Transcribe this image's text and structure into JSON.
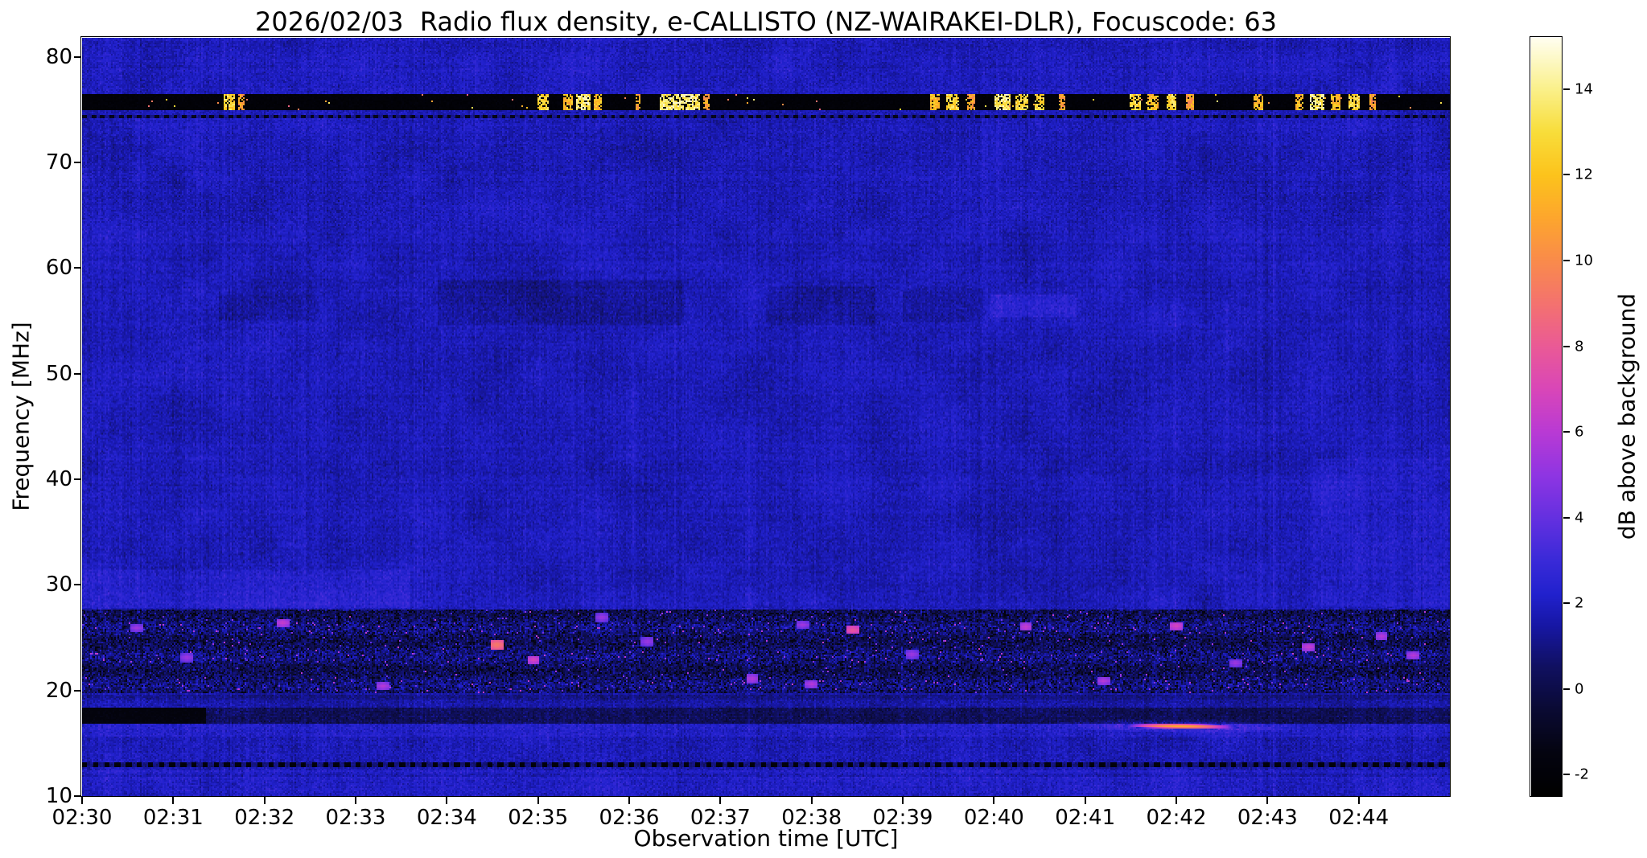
{
  "seed": 20260203,
  "chart_data": {
    "type": "heatmap",
    "title": "2026/02/03  Radio flux density, e-CALLISTO (NZ-WAIRAKEI-DLR), Focuscode: 63",
    "xlabel": "Observation time [UTC]",
    "ylabel": "Frequency [MHz]",
    "x_ticks": [
      "02:30",
      "02:31",
      "02:32",
      "02:33",
      "02:34",
      "02:35",
      "02:36",
      "02:37",
      "02:38",
      "02:39",
      "02:40",
      "02:41",
      "02:42",
      "02:43",
      "02:44"
    ],
    "x_span_minutes": 15,
    "y_ticks": [
      10,
      20,
      30,
      40,
      50,
      60,
      70,
      80
    ],
    "y_range_mhz": [
      10,
      81.8
    ],
    "background_db": 1.8,
    "noise_db": 0.55,
    "colorbar": {
      "label": "dB above background",
      "ticks": [
        -2,
        0,
        2,
        4,
        6,
        8,
        10,
        12,
        14
      ],
      "range": [
        -2.5,
        15.2
      ],
      "stops": [
        [
          -2.5,
          "#000000"
        ],
        [
          -1.5,
          "#040410"
        ],
        [
          -0.5,
          "#0a0a33"
        ],
        [
          0.5,
          "#101060"
        ],
        [
          1.5,
          "#1717a6"
        ],
        [
          2.2,
          "#2121cd"
        ],
        [
          3,
          "#3a2ad8"
        ],
        [
          4,
          "#6530e0"
        ],
        [
          5,
          "#8f35e2"
        ],
        [
          6,
          "#b93ad4"
        ],
        [
          7,
          "#d946b8"
        ],
        [
          8,
          "#ea5a96"
        ],
        [
          9,
          "#f4726f"
        ],
        [
          10,
          "#f98b4b"
        ],
        [
          11,
          "#fda62d"
        ],
        [
          12,
          "#fcc31c"
        ],
        [
          13,
          "#f8dd3a"
        ],
        [
          14,
          "#faf08a"
        ],
        [
          15.2,
          "#fffef0"
        ]
      ]
    },
    "features": {
      "rfi_band_75mhz": {
        "f_lo": 74.9,
        "f_hi": 76.5,
        "db": -2.2,
        "bursts": [
          [
            1.62,
            0.06,
            14
          ],
          [
            1.75,
            0.03,
            12
          ],
          [
            5.05,
            0.06,
            14
          ],
          [
            5.33,
            0.05,
            13
          ],
          [
            5.5,
            0.08,
            15
          ],
          [
            5.66,
            0.04,
            13
          ],
          [
            6.1,
            0.03,
            12
          ],
          [
            6.55,
            0.22,
            15
          ],
          [
            6.85,
            0.04,
            12
          ],
          [
            9.35,
            0.05,
            13
          ],
          [
            9.55,
            0.07,
            14
          ],
          [
            9.75,
            0.04,
            12
          ],
          [
            10.1,
            0.09,
            15
          ],
          [
            10.3,
            0.07,
            14
          ],
          [
            10.5,
            0.06,
            14
          ],
          [
            10.75,
            0.03,
            12
          ],
          [
            11.55,
            0.07,
            14
          ],
          [
            11.75,
            0.06,
            13
          ],
          [
            11.95,
            0.05,
            14
          ],
          [
            12.15,
            0.04,
            12
          ],
          [
            12.9,
            0.06,
            13
          ],
          [
            13.35,
            0.05,
            13
          ],
          [
            13.55,
            0.08,
            15
          ],
          [
            13.75,
            0.05,
            13
          ],
          [
            13.95,
            0.07,
            14
          ],
          [
            14.15,
            0.04,
            12
          ]
        ]
      },
      "dotted_line_74mhz": {
        "f_lo": 74.2,
        "f_hi": 74.55,
        "db": -1.2,
        "dash_minutes": 0.05
      },
      "speckle_band": {
        "f_lo": 19.8,
        "f_hi": 27.6,
        "db_offset": -1.1,
        "bright_points": [
          [
            4.55,
            24.3,
            9.5
          ],
          [
            8.45,
            25.7,
            8
          ],
          [
            2.2,
            26.4,
            6.5
          ],
          [
            4.95,
            22.9,
            7
          ],
          [
            7.35,
            21.1,
            6
          ],
          [
            10.35,
            26.0,
            6.5
          ],
          [
            12.0,
            26.1,
            7
          ],
          [
            13.45,
            24.1,
            6.5
          ],
          [
            14.25,
            25.1,
            6
          ],
          [
            0.6,
            25.9,
            5.5
          ],
          [
            1.15,
            23.1,
            5.5
          ],
          [
            3.3,
            20.4,
            6
          ],
          [
            6.2,
            24.6,
            5.5
          ],
          [
            8.0,
            20.6,
            6
          ],
          [
            9.1,
            23.4,
            5.5
          ],
          [
            11.2,
            20.9,
            6
          ],
          [
            12.65,
            22.6,
            5.5
          ],
          [
            14.6,
            23.3,
            6
          ],
          [
            5.7,
            26.9,
            5.5
          ],
          [
            7.9,
            26.2,
            5.5
          ]
        ]
      },
      "dark_band_17mhz": {
        "f_lo": 16.9,
        "f_hi": 18.3,
        "db_offset": -1.5,
        "black_segment": {
          "t0": 0,
          "t1": 1.35,
          "db": -1.8
        }
      },
      "dotted_line_13mhz": {
        "f_lo": 12.75,
        "f_hi": 13.25,
        "db": -1.9,
        "dash_minutes": 0.06
      },
      "drift_burst": {
        "t": 12.05,
        "f": 16.6,
        "t_halfwidth": 0.65,
        "f_halfwidth": 0.3,
        "peak_db": 9.5,
        "drift_mhz_per_min": -0.12
      },
      "smudges": [
        {
          "t0": 3.9,
          "t1": 6.6,
          "f0": 54.5,
          "f1": 58.8,
          "ddb": -0.5
        },
        {
          "t0": 7.5,
          "t1": 8.7,
          "f0": 54.5,
          "f1": 58.2,
          "ddb": -0.45
        },
        {
          "t0": 9.0,
          "t1": 9.9,
          "f0": 54.8,
          "f1": 58.0,
          "ddb": -0.4
        },
        {
          "t0": 9.95,
          "t1": 10.9,
          "f0": 55.3,
          "f1": 57.4,
          "ddb": 0.55
        },
        {
          "t0": 1.5,
          "t1": 2.6,
          "f0": 55.0,
          "f1": 57.5,
          "ddb": -0.3
        },
        {
          "t0": 0.0,
          "t1": 3.6,
          "f0": 27.8,
          "f1": 31.5,
          "ddb": 0.45
        },
        {
          "t0": 13.5,
          "t1": 15.0,
          "f0": 28.0,
          "f1": 42.0,
          "ddb": 0.3
        },
        {
          "t0": 0.0,
          "t1": 15.0,
          "f0": 76.6,
          "f1": 80.4,
          "ddb": 0.15
        }
      ],
      "vertical_streaks": [
        {
          "t": 6.05,
          "f0": 13.5,
          "f1": 52,
          "ddb": 0.5
        },
        {
          "t": 7.3,
          "f0": 13.5,
          "f1": 45,
          "ddb": 0.45
        },
        {
          "t": 9.0,
          "f0": 14,
          "f1": 32,
          "ddb": 0.4
        },
        {
          "t": 12.55,
          "f0": 14,
          "f1": 57,
          "ddb": 0.45
        },
        {
          "t": 4.35,
          "f0": 14,
          "f1": 30,
          "ddb": 0.4
        },
        {
          "t": 10.6,
          "f0": 14,
          "f1": 40,
          "ddb": 0.35
        },
        {
          "t": 5.1,
          "f0": 13.5,
          "f1": 35,
          "ddb": 0.35
        }
      ]
    }
  }
}
